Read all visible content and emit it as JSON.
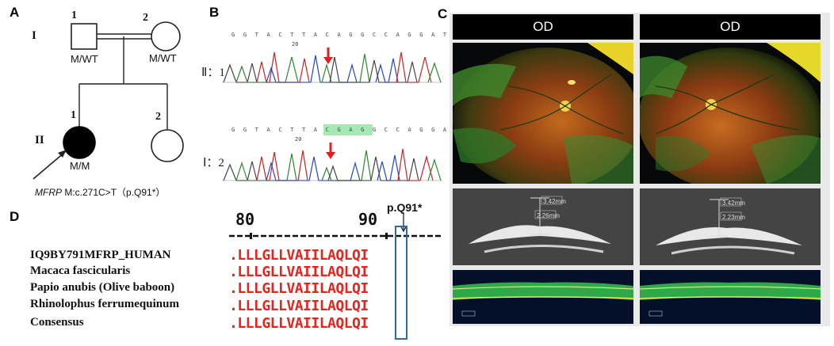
{
  "panels": {
    "a": "A",
    "b": "B",
    "c": "C",
    "d": "D"
  },
  "pedigree": {
    "generations": [
      "I",
      "II"
    ],
    "individuals": [
      {
        "id": "I-1",
        "number": "1",
        "genotype": "M/WT"
      },
      {
        "id": "I-2",
        "number": "2",
        "genotype": "M/WT"
      },
      {
        "id": "II-1",
        "number": "1",
        "genotype": "M/M"
      },
      {
        "id": "II-2",
        "number": "2",
        "genotype": ""
      }
    ],
    "mutation_gene": "MFRP",
    "mutation_text": " M:c.271C>T（p.Q91*）"
  },
  "sequencing": {
    "traces": [
      {
        "label": "Ⅱ：1",
        "bases": "G G T A C T T A C A G G C C A G G A T",
        "marker": "20"
      },
      {
        "label": "Ⅰ：2",
        "bases": "G G T A C T T A C G A G G C C A G G A T",
        "marker": "20"
      }
    ],
    "arrow_color": "#e02020"
  },
  "imaging": {
    "headers": [
      "OD",
      "OD"
    ],
    "ultrasound": [
      {
        "m1": "3.42mm",
        "m2": "2.26mm"
      },
      {
        "m1": "3.42mm",
        "m2": "2.23mm"
      }
    ]
  },
  "alignment": {
    "ruler": [
      "80",
      "90"
    ],
    "mutation_label": "p.Q91*",
    "rows": [
      {
        "species": "IQ9BY791MFRP_HUMAN",
        "sequence": ".LLLGLLVAIILAQLQI"
      },
      {
        "species": "Macaca fascicularis",
        "sequence": ".LLLGLLVAIILAQLQI"
      },
      {
        "species": "Papio anubis (Olive baboon)",
        "sequence": ".LLLGLLVAIILAQLQI"
      },
      {
        "species": "Rhinolophus ferrumequinum",
        "sequence": ".LLLGLLVAIILAQLQI"
      },
      {
        "species": "Consensus",
        "sequence": ".LLLGLLVAIILAQLQI"
      }
    ],
    "sequence_color": "#e8221c",
    "highlight_color": "#2e6aa8"
  }
}
